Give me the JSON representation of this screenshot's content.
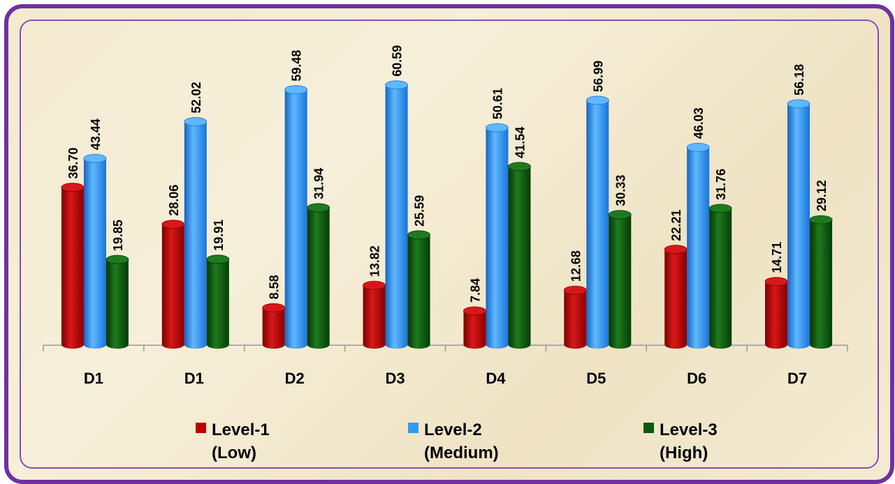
{
  "chart_data": {
    "type": "bar",
    "categories": [
      "D1",
      "D1",
      "D2",
      "D3",
      "D4",
      "D5",
      "D6",
      "D7"
    ],
    "series": [
      {
        "name": "Level-1 (Low)",
        "values": [
          36.7,
          28.06,
          8.58,
          13.82,
          7.84,
          12.68,
          22.21,
          14.71
        ],
        "labels": [
          "36.70",
          "28.06",
          "8.58",
          "13.82",
          "7.84",
          "12.68",
          "22.21",
          "14.71"
        ],
        "color": "#c00000"
      },
      {
        "name": "Level-2 (Medium)",
        "values": [
          43.44,
          52.02,
          59.48,
          60.59,
          50.61,
          56.99,
          46.03,
          56.18
        ],
        "labels": [
          "43.44",
          "52.02",
          "59.48",
          "60.59",
          "50.61",
          "56.99",
          "46.03",
          "56.18"
        ],
        "color": "#1e90ff"
      },
      {
        "name": "Level-3 (High)",
        "values": [
          19.85,
          19.91,
          31.94,
          25.59,
          41.54,
          30.33,
          31.76,
          29.12
        ],
        "labels": [
          "19.85",
          "19.91",
          "31.94",
          "25.59",
          "41.54",
          "30.33",
          "31.76",
          "29.12"
        ],
        "color": "#0b5a0b"
      }
    ],
    "ylim": [
      0,
      70
    ],
    "grid": false,
    "legend_position": "bottom"
  },
  "legend": [
    {
      "line1": "Level-1",
      "line2": "(Low)",
      "color": "#c00000"
    },
    {
      "line1": "Level-2",
      "line2": "(Medium)",
      "color": "#2e9cf0"
    },
    {
      "line1": "Level-3",
      "line2": "(High)",
      "color": "#0b5a0b"
    }
  ]
}
